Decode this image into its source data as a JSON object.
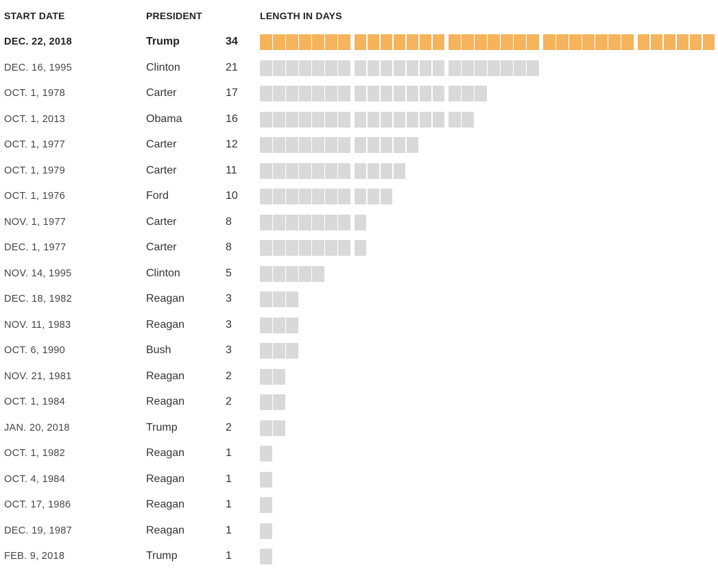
{
  "chart_data": {
    "type": "table",
    "headers": {
      "date": "START DATE",
      "president": "PRESIDENT",
      "length": "LENGTH IN DAYS"
    },
    "colors": {
      "highlight": "#f5b35c",
      "default": "#d9d9d9"
    },
    "rows": [
      {
        "date": "DEC. 22, 2018",
        "president": "Trump",
        "days": 34,
        "highlight": true
      },
      {
        "date": "DEC. 16, 1995",
        "president": "Clinton",
        "days": 21
      },
      {
        "date": "OCT. 1, 1978",
        "president": "Carter",
        "days": 17
      },
      {
        "date": "OCT. 1, 2013",
        "president": "Obama",
        "days": 16
      },
      {
        "date": "OCT. 1, 1977",
        "president": "Carter",
        "days": 12
      },
      {
        "date": "OCT. 1, 1979",
        "president": "Carter",
        "days": 11
      },
      {
        "date": "OCT. 1, 1976",
        "president": "Ford",
        "days": 10
      },
      {
        "date": "NOV. 1, 1977",
        "president": "Carter",
        "days": 8
      },
      {
        "date": "DEC. 1, 1977",
        "president": "Carter",
        "days": 8
      },
      {
        "date": "NOV. 14, 1995",
        "president": "Clinton",
        "days": 5
      },
      {
        "date": "DEC. 18, 1982",
        "president": "Reagan",
        "days": 3
      },
      {
        "date": "NOV. 11, 1983",
        "president": "Reagan",
        "days": 3
      },
      {
        "date": "OCT. 6, 1990",
        "president": "Bush",
        "days": 3
      },
      {
        "date": "NOV. 21, 1981",
        "president": "Reagan",
        "days": 2
      },
      {
        "date": "OCT. 1, 1984",
        "president": "Reagan",
        "days": 2
      },
      {
        "date": "JAN. 20, 2018",
        "president": "Trump",
        "days": 2
      },
      {
        "date": "OCT. 1, 1982",
        "president": "Reagan",
        "days": 1
      },
      {
        "date": "OCT. 4, 1984",
        "president": "Reagan",
        "days": 1
      },
      {
        "date": "OCT. 17, 1986",
        "president": "Reagan",
        "days": 1
      },
      {
        "date": "DEC. 19, 1987",
        "president": "Reagan",
        "days": 1
      },
      {
        "date": "FEB. 9, 2018",
        "president": "Trump",
        "days": 1
      }
    ]
  }
}
